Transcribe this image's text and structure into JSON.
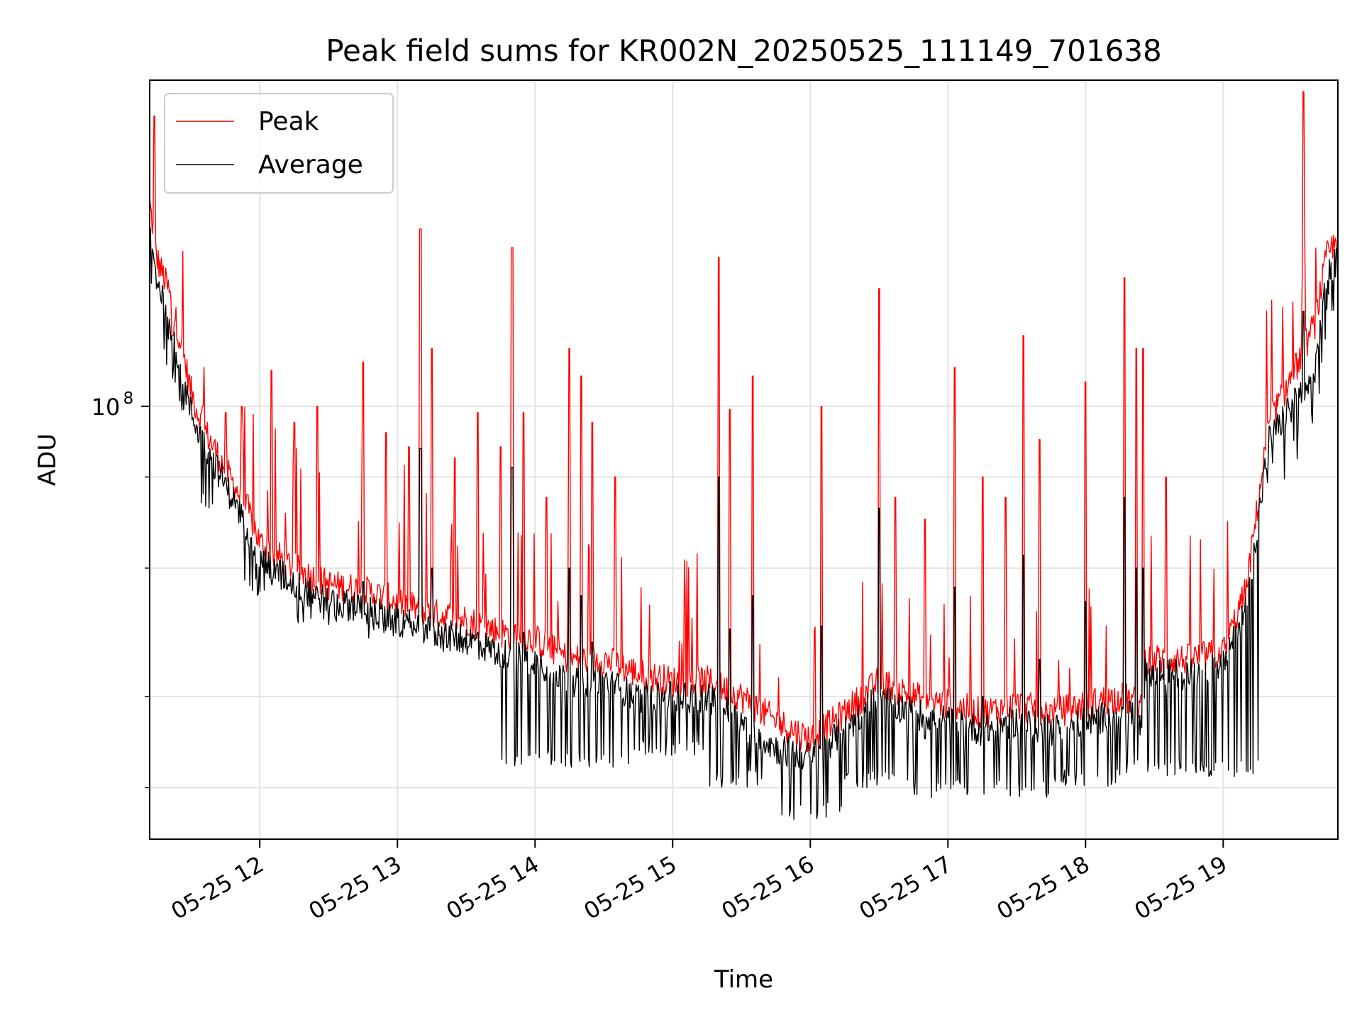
{
  "chart_data": {
    "type": "line",
    "title": "Peak field sums for KR002N_20250525_111149_701638",
    "xlabel": "Time",
    "ylabel": "ADU",
    "y_scale": "log",
    "x_range": [
      "2025-05-25 11:12",
      "2025-05-25 19:50"
    ],
    "ylim": [
      25500000,
      280000000
    ],
    "grid": true,
    "legend_position": "upper-left",
    "x_ticks": [
      "05-25 12",
      "05-25 13",
      "05-25 14",
      "05-25 15",
      "05-25 16",
      "05-25 17",
      "05-25 18",
      "05-25 19"
    ],
    "y_ticks": [
      {
        "value": 100000000,
        "base": "10",
        "exponent": "8"
      }
    ],
    "y_minor_ticks": [
      30000000,
      40000000,
      60000000,
      80000000
    ],
    "series": [
      {
        "name": "Peak",
        "color": "#ff0000",
        "baseline": [
          [
            "11:12",
            190000000
          ],
          [
            "11:15",
            160000000
          ],
          [
            "11:20",
            145000000
          ],
          [
            "11:25",
            125000000
          ],
          [
            "11:30",
            105000000
          ],
          [
            "11:35",
            94000000
          ],
          [
            "11:45",
            82000000
          ],
          [
            "11:55",
            72000000
          ],
          [
            "12:00",
            65000000
          ],
          [
            "12:15",
            60000000
          ],
          [
            "12:30",
            57000000
          ],
          [
            "12:45",
            56000000
          ],
          [
            "13:00",
            54000000
          ],
          [
            "13:15",
            52000000
          ],
          [
            "13:30",
            51000000
          ],
          [
            "13:45",
            49000000
          ],
          [
            "14:00",
            48000000
          ],
          [
            "14:15",
            45000000
          ],
          [
            "14:30",
            45000000
          ],
          [
            "14:45",
            43000000
          ],
          [
            "15:00",
            42000000
          ],
          [
            "15:15",
            42000000
          ],
          [
            "15:30",
            40000000
          ],
          [
            "15:45",
            37000000
          ],
          [
            "16:00",
            35000000
          ],
          [
            "16:15",
            38000000
          ],
          [
            "16:30",
            42000000
          ],
          [
            "16:45",
            40000000
          ],
          [
            "17:00",
            39000000
          ],
          [
            "17:15",
            38000000
          ],
          [
            "17:30",
            39000000
          ],
          [
            "17:45",
            38000000
          ],
          [
            "18:00",
            39000000
          ],
          [
            "18:15",
            40000000
          ],
          [
            "18:25",
            39000000
          ],
          [
            "18:26",
            45000000
          ],
          [
            "18:45",
            45000000
          ],
          [
            "19:00",
            46000000
          ],
          [
            "19:10",
            56000000
          ],
          [
            "19:20",
            95000000
          ],
          [
            "19:30",
            110000000
          ],
          [
            "19:40",
            130000000
          ],
          [
            "19:45",
            160000000
          ],
          [
            "19:50",
            170000000
          ]
        ],
        "spikes": [
          [
            "11:14",
            250000000
          ],
          [
            "11:22",
            125000000
          ],
          [
            "11:35",
            100000000
          ],
          [
            "11:45",
            98000000
          ],
          [
            "11:52",
            100000000
          ],
          [
            "12:05",
            112000000
          ],
          [
            "12:15",
            95000000
          ],
          [
            "12:25",
            100000000
          ],
          [
            "12:45",
            115000000
          ],
          [
            "12:55",
            92000000
          ],
          [
            "13:05",
            88000000
          ],
          [
            "13:10",
            175000000
          ],
          [
            "13:15",
            120000000
          ],
          [
            "13:25",
            85000000
          ],
          [
            "13:35",
            98000000
          ],
          [
            "13:45",
            88000000
          ],
          [
            "13:50",
            165000000
          ],
          [
            "13:55",
            98000000
          ],
          [
            "14:05",
            75000000
          ],
          [
            "14:15",
            120000000
          ],
          [
            "14:20",
            110000000
          ],
          [
            "14:25",
            95000000
          ],
          [
            "14:35",
            80000000
          ],
          [
            "15:20",
            160000000
          ],
          [
            "15:25",
            99000000
          ],
          [
            "15:35",
            110000000
          ],
          [
            "16:05",
            100000000
          ],
          [
            "16:30",
            145000000
          ],
          [
            "16:37",
            75000000
          ],
          [
            "16:50",
            70000000
          ],
          [
            "17:03",
            113000000
          ],
          [
            "17:15",
            80000000
          ],
          [
            "17:25",
            75000000
          ],
          [
            "17:33",
            125000000
          ],
          [
            "17:40",
            90000000
          ],
          [
            "18:00",
            108000000
          ],
          [
            "18:17",
            150000000
          ],
          [
            "18:22",
            120000000
          ],
          [
            "18:25",
            120000000
          ],
          [
            "18:35",
            80000000
          ],
          [
            "19:35",
            270000000
          ]
        ]
      },
      {
        "name": "Average",
        "color": "#000000",
        "baseline": [
          [
            "11:12",
            170000000
          ],
          [
            "11:15",
            150000000
          ],
          [
            "11:20",
            135000000
          ],
          [
            "11:25",
            115000000
          ],
          [
            "11:30",
            98000000
          ],
          [
            "11:35",
            90000000
          ],
          [
            "11:45",
            78000000
          ],
          [
            "11:55",
            68000000
          ],
          [
            "12:00",
            62000000
          ],
          [
            "12:15",
            57000000
          ],
          [
            "12:30",
            54000000
          ],
          [
            "12:45",
            53000000
          ],
          [
            "13:00",
            51000000
          ],
          [
            "13:15",
            49000000
          ],
          [
            "13:30",
            48000000
          ],
          [
            "13:45",
            46000000
          ],
          [
            "14:00",
            45000000
          ],
          [
            "14:15",
            42000000
          ],
          [
            "14:30",
            42000000
          ],
          [
            "14:45",
            40000000
          ],
          [
            "15:00",
            40000000
          ],
          [
            "15:15",
            40000000
          ],
          [
            "15:30",
            37000000
          ],
          [
            "15:45",
            34000000
          ],
          [
            "16:00",
            33000000
          ],
          [
            "16:15",
            36000000
          ],
          [
            "16:30",
            40000000
          ],
          [
            "16:45",
            38000000
          ],
          [
            "17:00",
            37000000
          ],
          [
            "17:15",
            36000000
          ],
          [
            "17:30",
            37000000
          ],
          [
            "17:45",
            36000000
          ],
          [
            "18:00",
            37000000
          ],
          [
            "18:15",
            38000000
          ],
          [
            "18:25",
            37000000
          ],
          [
            "18:26",
            43000000
          ],
          [
            "18:45",
            43000000
          ],
          [
            "19:00",
            44000000
          ],
          [
            "19:10",
            53000000
          ],
          [
            "19:20",
            90000000
          ],
          [
            "19:30",
            100000000
          ],
          [
            "19:40",
            110000000
          ],
          [
            "19:45",
            150000000
          ],
          [
            "19:50",
            160000000
          ]
        ],
        "dips": [
          [
            "11:45",
            72000000
          ],
          [
            "12:00",
            55000000
          ],
          [
            "12:30",
            50000000
          ],
          [
            "13:00",
            48000000
          ],
          [
            "13:30",
            46000000
          ],
          [
            "14:00",
            32000000
          ],
          [
            "14:30",
            32000000
          ],
          [
            "15:00",
            33000000
          ],
          [
            "15:30",
            30000000
          ],
          [
            "16:00",
            27000000
          ],
          [
            "16:30",
            30000000
          ],
          [
            "17:00",
            29000000
          ],
          [
            "17:30",
            29000000
          ],
          [
            "18:00",
            30000000
          ],
          [
            "18:30",
            31000000
          ],
          [
            "19:00",
            31000000
          ]
        ]
      }
    ]
  }
}
